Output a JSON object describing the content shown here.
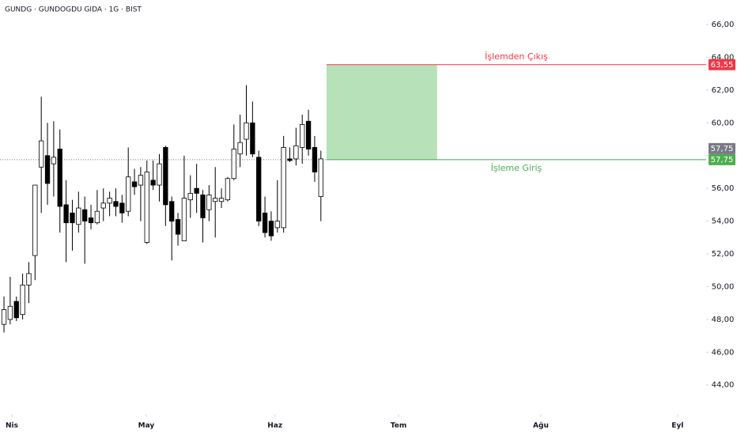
{
  "chart_data": {
    "type": "candlestick",
    "title": "GUNDG · GUNDOGDU GIDA · 1G · BIST",
    "x": [
      0,
      1,
      2,
      3,
      4,
      5,
      6,
      7,
      8,
      9,
      10,
      11,
      12,
      13,
      14,
      15,
      16,
      17,
      18,
      19,
      20,
      21,
      22,
      23,
      24,
      25,
      26,
      27,
      28,
      29,
      30,
      31,
      32,
      33,
      34,
      35,
      36,
      37,
      38,
      39,
      40,
      41,
      42,
      43,
      44,
      45,
      46,
      47,
      48,
      49,
      50,
      51
    ],
    "open": [
      47.7,
      48.0,
      49.1,
      48.3,
      50.1,
      51.9,
      57.3,
      58.0,
      57.5,
      58.4,
      55.0,
      54.5,
      53.8,
      54.7,
      54.2,
      53.9,
      54.8,
      55.1,
      55.2,
      55.1,
      54.6,
      56.4,
      56.2,
      52.7,
      56.5,
      56.2,
      58.5,
      55.2,
      54.1,
      52.8,
      55.3,
      56.0,
      55.6,
      54.7,
      55.2,
      55.2,
      55.3,
      56.6,
      58.1,
      59.0,
      60.0,
      57.9,
      54.5,
      54.0,
      53.6,
      53.6,
      57.8,
      57.8,
      58.5,
      60.1,
      58.5,
      55.5
    ],
    "high": [
      49.4,
      50.6,
      49.4,
      50.8,
      51.5,
      56.2,
      61.6,
      60.0,
      60.1,
      59.6,
      56.5,
      55.3,
      55.8,
      55.5,
      55.0,
      55.9,
      56.0,
      55.8,
      56.0,
      55.6,
      58.5,
      57.2,
      57.3,
      57.7,
      57.7,
      58.1,
      58.6,
      55.5,
      54.5,
      58.0,
      56.8,
      57.5,
      55.9,
      56.2,
      57.3,
      56.0,
      56.7,
      59.9,
      60.5,
      62.3,
      61.3,
      58.3,
      55.5,
      54.6,
      56.5,
      59.2,
      58.5,
      59.7,
      60.5,
      60.8,
      59.2,
      58.3
    ],
    "low": [
      47.2,
      47.7,
      47.9,
      48.0,
      49.0,
      50.4,
      54.5,
      55.0,
      55.5,
      53.3,
      51.5,
      52.2,
      53.3,
      51.4,
      53.5,
      53.8,
      54.0,
      54.3,
      54.3,
      53.9,
      54.3,
      55.6,
      54.0,
      52.6,
      55.9,
      55.2,
      53.7,
      51.6,
      52.5,
      52.8,
      54.2,
      54.5,
      52.7,
      54.0,
      53.0,
      54.8,
      55.2,
      56.5,
      57.3,
      58.0,
      57.9,
      53.7,
      53.0,
      52.8,
      53.3,
      53.3,
      57.6,
      57.4,
      57.5,
      58.0,
      56.4,
      54.0
    ],
    "close": [
      48.6,
      48.8,
      48.1,
      50.1,
      50.8,
      56.2,
      58.9,
      56.3,
      57.9,
      54.9,
      53.9,
      53.9,
      54.8,
      54.0,
      53.9,
      54.6,
      55.1,
      55.4,
      54.9,
      54.5,
      56.7,
      56.1,
      56.8,
      57.0,
      56.2,
      57.5,
      55.0,
      54.0,
      53.2,
      55.4,
      55.7,
      55.7,
      54.2,
      55.6,
      55.4,
      55.4,
      56.6,
      58.4,
      58.8,
      60.0,
      58.1,
      54.0,
      53.3,
      53.1,
      54.0,
      58.5,
      57.7,
      58.6,
      59.9,
      58.4,
      57.0,
      57.8
    ],
    "up_color": "#ffffff",
    "down_color": "#000000",
    "ylim": [
      42.2,
      67.5
    ],
    "yticks": [
      {
        "value": 44,
        "label": "44,00"
      },
      {
        "value": 46,
        "label": "46,00"
      },
      {
        "value": 48,
        "label": "48,00"
      },
      {
        "value": 50,
        "label": "50,00"
      },
      {
        "value": 52,
        "label": "52,00"
      },
      {
        "value": 54,
        "label": "54,00"
      },
      {
        "value": 56,
        "label": "56,00"
      },
      {
        "value": 58,
        "label": "58,00"
      },
      {
        "value": 60,
        "label": "60,00"
      },
      {
        "value": 62,
        "label": "62,00"
      },
      {
        "value": 64,
        "label": "64,00"
      },
      {
        "value": 66,
        "label": "66,00"
      }
    ],
    "xlim": [
      -0.64,
      113.0
    ],
    "xticks": [
      {
        "value": 1.27,
        "label": "Nis"
      },
      {
        "value": 22.9,
        "label": "May"
      },
      {
        "value": 43.6,
        "label": "Haz"
      },
      {
        "value": 63.5,
        "label": "Tem"
      },
      {
        "value": 86.4,
        "label": "Ağu"
      },
      {
        "value": 108.4,
        "label": "Eyl"
      }
    ],
    "last_price": {
      "value": 57.75,
      "label": "57,75",
      "color": "#787b86"
    },
    "levels": [
      {
        "name": "İşlemden Çıkış",
        "value": 63.55,
        "label": "63,55",
        "color": "#f23645"
      },
      {
        "name": "İşleme Giriş",
        "value": 57.75,
        "label": "57,75",
        "color": "#4caf50"
      }
    ],
    "zone_x": [
      51.9,
      69.7
    ],
    "zone_color": "#b7e1b9"
  }
}
